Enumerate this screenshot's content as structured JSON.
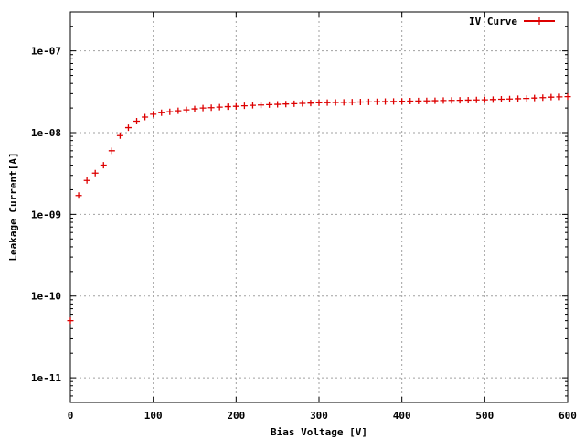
{
  "chart_data": {
    "type": "scatter",
    "title": "",
    "xlabel": "Bias Voltage [V]",
    "ylabel": "Leakage Current[A]",
    "xlim": [
      0,
      600
    ],
    "ylim": [
      5e-12,
      3e-07
    ],
    "yscale": "log",
    "grid": true,
    "legend_position": "top-right",
    "x_ticks": [
      0,
      100,
      200,
      300,
      400,
      500,
      600
    ],
    "x_tick_labels": [
      "0",
      "100",
      "200",
      "300",
      "400",
      "500",
      "600"
    ],
    "y_ticks": [
      1e-11,
      1e-10,
      1e-09,
      1e-08,
      1e-07
    ],
    "y_tick_labels": [
      "1e-11",
      "1e-10",
      "1e-09",
      "1e-08",
      "1e-07"
    ],
    "series": [
      {
        "name": "IV Curve",
        "color": "#dd0000",
        "marker": "plus",
        "x": [
          0,
          10,
          20,
          30,
          40,
          50,
          60,
          70,
          80,
          90,
          100,
          110,
          120,
          130,
          140,
          150,
          160,
          170,
          180,
          190,
          200,
          210,
          220,
          230,
          240,
          250,
          260,
          270,
          280,
          290,
          300,
          310,
          320,
          330,
          340,
          350,
          360,
          370,
          380,
          390,
          400,
          410,
          420,
          430,
          440,
          450,
          460,
          470,
          480,
          490,
          500,
          510,
          520,
          530,
          540,
          550,
          560,
          570,
          580,
          590,
          600
        ],
        "y": [
          5e-11,
          1.7e-09,
          2.6e-09,
          3.2e-09,
          4e-09,
          6e-09,
          9.2e-09,
          1.15e-08,
          1.38e-08,
          1.55e-08,
          1.68e-08,
          1.75e-08,
          1.8e-08,
          1.85e-08,
          1.9e-08,
          1.95e-08,
          2e-08,
          2.02e-08,
          2.05e-08,
          2.08e-08,
          2.1e-08,
          2.13e-08,
          2.16e-08,
          2.18e-08,
          2.2e-08,
          2.22e-08,
          2.24e-08,
          2.26e-08,
          2.28e-08,
          2.3e-08,
          2.32e-08,
          2.33e-08,
          2.34e-08,
          2.35e-08,
          2.36e-08,
          2.37e-08,
          2.38e-08,
          2.39e-08,
          2.4e-08,
          2.41e-08,
          2.42e-08,
          2.43e-08,
          2.44e-08,
          2.45e-08,
          2.46e-08,
          2.47e-08,
          2.48e-08,
          2.49e-08,
          2.5e-08,
          2.51e-08,
          2.52e-08,
          2.54e-08,
          2.56e-08,
          2.58e-08,
          2.6e-08,
          2.62e-08,
          2.65e-08,
          2.68e-08,
          2.72e-08,
          2.74e-08,
          2.76e-08
        ]
      }
    ]
  }
}
